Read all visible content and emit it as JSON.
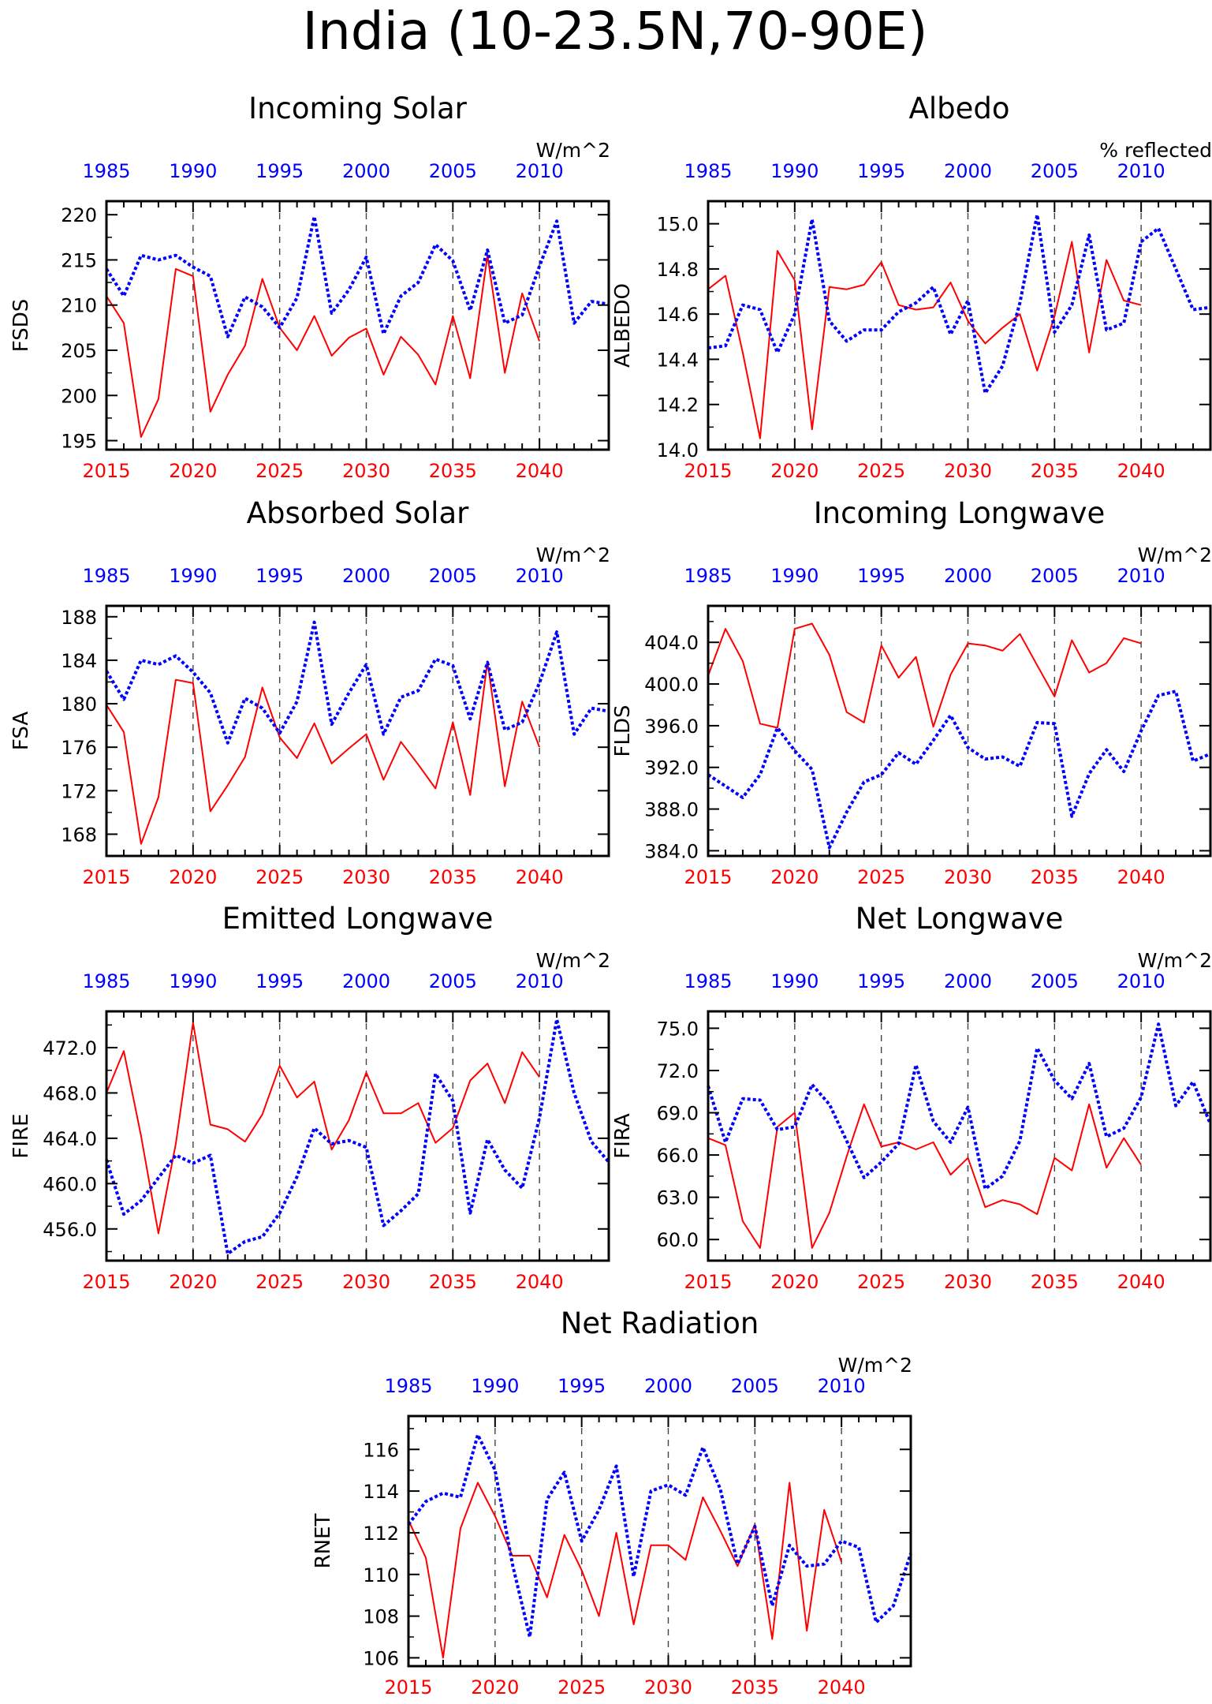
{
  "figure_title": "India (10-23.5N,70-90E)",
  "colors": {
    "future": "#ff0000",
    "historical": "#0000ff",
    "axis": "#000000",
    "grid": "#444444"
  },
  "chart_data": [
    {
      "type": "line",
      "title": "Incoming Solar",
      "ylabel": "FSDS",
      "units": "W/m^2",
      "x_bottom": [
        2015,
        2016,
        2017,
        2018,
        2019,
        2020,
        2021,
        2022,
        2023,
        2024,
        2025,
        2026,
        2027,
        2028,
        2029,
        2030,
        2031,
        2032,
        2033,
        2034,
        2035,
        2036,
        2037,
        2038,
        2039,
        2040,
        2041,
        2042,
        2043,
        2044
      ],
      "bottom_ticks": [
        "2015",
        "2020",
        "2025",
        "2030",
        "2035",
        "2040"
      ],
      "top_ticks": [
        "1985",
        "1990",
        "1995",
        "2000",
        "2005",
        "2010"
      ],
      "grid_years": [
        2020,
        2025,
        2030,
        2035,
        2040
      ],
      "ylim": [
        194,
        221.5
      ],
      "yticks": [
        195,
        200,
        205,
        210,
        215,
        220
      ],
      "ytick_labels": [
        "195",
        "200",
        "205",
        "210",
        "215",
        "220"
      ],
      "series": [
        {
          "values": [
            211.0,
            208.0,
            195.4,
            199.6,
            214.0,
            213.2,
            198.2,
            202.3,
            205.5,
            212.9,
            207.5,
            205.0,
            208.8,
            204.4,
            206.4,
            207.4,
            202.3,
            206.5,
            204.5,
            201.2,
            208.8,
            201.9,
            215.5,
            202.5,
            211.3,
            206.0
          ]
        },
        {
          "values": [
            214.0,
            211.0,
            215.5,
            215.0,
            215.5,
            214.2,
            213.2,
            206.5,
            210.9,
            209.8,
            207.5,
            210.8,
            219.8,
            209.1,
            211.7,
            215.3,
            206.8,
            211.0,
            212.5,
            216.7,
            214.9,
            209.4,
            216.1,
            208.0,
            208.9,
            214.3,
            219.3,
            208.0,
            210.4,
            210.1
          ]
        }
      ]
    },
    {
      "type": "line",
      "title": "Albedo",
      "ylabel": "ALBEDO",
      "units": "% reflected",
      "x_bottom": [
        2015,
        2016,
        2017,
        2018,
        2019,
        2020,
        2021,
        2022,
        2023,
        2024,
        2025,
        2026,
        2027,
        2028,
        2029,
        2030,
        2031,
        2032,
        2033,
        2034,
        2035,
        2036,
        2037,
        2038,
        2039,
        2040,
        2041,
        2042,
        2043,
        2044
      ],
      "bottom_ticks": [
        "2015",
        "2020",
        "2025",
        "2030",
        "2035",
        "2040"
      ],
      "top_ticks": [
        "1985",
        "1990",
        "1995",
        "2000",
        "2005",
        "2010"
      ],
      "grid_years": [
        2020,
        2025,
        2030,
        2035,
        2040
      ],
      "ylim": [
        14.0,
        15.1
      ],
      "yticks": [
        14.0,
        14.2,
        14.4,
        14.6,
        14.8,
        15.0
      ],
      "ytick_labels": [
        "14.0",
        "14.2",
        "14.4",
        "14.6",
        "14.8",
        "15.0"
      ],
      "series": [
        {
          "values": [
            14.71,
            14.77,
            14.43,
            14.05,
            14.88,
            14.75,
            14.09,
            14.72,
            14.71,
            14.73,
            14.83,
            14.64,
            14.62,
            14.63,
            14.74,
            14.57,
            14.47,
            14.54,
            14.6,
            14.35,
            14.59,
            14.92,
            14.43,
            14.84,
            14.66,
            14.64
          ]
        },
        {
          "values": [
            14.45,
            14.46,
            14.64,
            14.62,
            14.43,
            14.6,
            15.02,
            14.57,
            14.48,
            14.53,
            14.53,
            14.61,
            14.65,
            14.72,
            14.51,
            14.66,
            14.25,
            14.37,
            14.65,
            15.04,
            14.52,
            14.64,
            14.95,
            14.53,
            14.56,
            14.92,
            14.98,
            14.8,
            14.62,
            14.63
          ]
        }
      ]
    },
    {
      "type": "line",
      "title": "Absorbed Solar",
      "ylabel": "FSA",
      "units": "W/m^2",
      "x_bottom": [
        2015,
        2016,
        2017,
        2018,
        2019,
        2020,
        2021,
        2022,
        2023,
        2024,
        2025,
        2026,
        2027,
        2028,
        2029,
        2030,
        2031,
        2032,
        2033,
        2034,
        2035,
        2036,
        2037,
        2038,
        2039,
        2040,
        2041,
        2042,
        2043,
        2044
      ],
      "bottom_ticks": [
        "2015",
        "2020",
        "2025",
        "2030",
        "2035",
        "2040"
      ],
      "top_ticks": [
        "1985",
        "1990",
        "1995",
        "2000",
        "2005",
        "2010"
      ],
      "grid_years": [
        2020,
        2025,
        2030,
        2035,
        2040
      ],
      "ylim": [
        166,
        189
      ],
      "yticks": [
        168,
        172,
        176,
        180,
        184,
        188
      ],
      "ytick_labels": [
        "168",
        "172",
        "176",
        "180",
        "184",
        "188"
      ],
      "series": [
        {
          "values": [
            179.9,
            177.4,
            167.1,
            171.4,
            182.2,
            181.9,
            170.1,
            172.5,
            175.1,
            181.5,
            176.9,
            175.0,
            178.2,
            174.5,
            175.9,
            177.2,
            173.0,
            176.5,
            174.4,
            172.2,
            178.3,
            171.6,
            183.9,
            172.4,
            180.2,
            176.0
          ]
        },
        {
          "values": [
            183.0,
            180.4,
            184.0,
            183.6,
            184.4,
            182.9,
            181.0,
            176.4,
            180.5,
            179.6,
            177.3,
            180.2,
            187.5,
            178.1,
            181.0,
            183.6,
            177.2,
            180.6,
            181.2,
            184.1,
            183.5,
            178.6,
            183.8,
            177.6,
            178.3,
            181.9,
            186.6,
            177.2,
            179.6,
            179.3
          ]
        }
      ]
    },
    {
      "type": "line",
      "title": "Incoming Longwave",
      "ylabel": "FLDS",
      "units": "W/m^2",
      "x_bottom": [
        2015,
        2016,
        2017,
        2018,
        2019,
        2020,
        2021,
        2022,
        2023,
        2024,
        2025,
        2026,
        2027,
        2028,
        2029,
        2030,
        2031,
        2032,
        2033,
        2034,
        2035,
        2036,
        2037,
        2038,
        2039,
        2040,
        2041,
        2042,
        2043,
        2044
      ],
      "bottom_ticks": [
        "2015",
        "2020",
        "2025",
        "2030",
        "2035",
        "2040"
      ],
      "top_ticks": [
        "1985",
        "1990",
        "1995",
        "2000",
        "2005",
        "2010"
      ],
      "grid_years": [
        2020,
        2025,
        2030,
        2035,
        2040
      ],
      "ylim": [
        383.5,
        407.5
      ],
      "yticks": [
        384,
        388,
        392,
        396,
        400,
        404
      ],
      "ytick_labels": [
        "384.0",
        "388.0",
        "392.0",
        "396.0",
        "400.0",
        "404.0"
      ],
      "series": [
        {
          "values": [
            400.8,
            405.3,
            402.2,
            396.2,
            395.8,
            405.3,
            405.8,
            402.8,
            397.3,
            396.3,
            403.7,
            400.6,
            402.6,
            395.9,
            400.9,
            403.9,
            403.7,
            403.2,
            404.8,
            401.8,
            398.8,
            404.2,
            401.1,
            402.0,
            404.4,
            403.9
          ]
        },
        {
          "values": [
            391.3,
            390.2,
            389.1,
            391.3,
            395.8,
            393.6,
            391.8,
            384.3,
            387.7,
            390.6,
            391.3,
            393.4,
            392.3,
            394.6,
            397.0,
            393.9,
            392.8,
            393.0,
            392.1,
            396.3,
            396.2,
            387.3,
            391.4,
            393.7,
            391.6,
            395.5,
            398.9,
            399.3,
            392.6,
            393.3
          ]
        }
      ]
    },
    {
      "type": "line",
      "title": "Emitted Longwave",
      "ylabel": "FIRE",
      "units": "W/m^2",
      "x_bottom": [
        2015,
        2016,
        2017,
        2018,
        2019,
        2020,
        2021,
        2022,
        2023,
        2024,
        2025,
        2026,
        2027,
        2028,
        2029,
        2030,
        2031,
        2032,
        2033,
        2034,
        2035,
        2036,
        2037,
        2038,
        2039,
        2040,
        2041,
        2042,
        2043,
        2044
      ],
      "bottom_ticks": [
        "2015",
        "2020",
        "2025",
        "2030",
        "2035",
        "2040"
      ],
      "top_ticks": [
        "1985",
        "1990",
        "1995",
        "2000",
        "2005",
        "2010"
      ],
      "grid_years": [
        2020,
        2025,
        2030,
        2035,
        2040
      ],
      "ylim": [
        453.2,
        475.2
      ],
      "yticks": [
        456,
        460,
        464,
        468,
        472
      ],
      "ytick_labels": [
        "456.0",
        "460.0",
        "464.0",
        "468.0",
        "472.0"
      ],
      "series": [
        {
          "values": [
            468.0,
            471.7,
            464.2,
            455.6,
            463.5,
            474.2,
            465.2,
            464.8,
            463.7,
            466.1,
            470.4,
            467.6,
            469.0,
            463.0,
            465.6,
            469.8,
            466.2,
            466.2,
            467.1,
            463.6,
            464.9,
            469.1,
            470.6,
            467.1,
            471.6,
            469.4
          ]
        },
        {
          "values": [
            462.1,
            457.3,
            458.5,
            460.5,
            462.5,
            461.8,
            462.5,
            453.8,
            454.9,
            455.3,
            457.4,
            460.6,
            464.9,
            463.5,
            463.8,
            463.2,
            456.3,
            457.6,
            459.1,
            469.7,
            467.3,
            457.4,
            463.9,
            461.2,
            459.6,
            465.8,
            474.5,
            468.0,
            463.7,
            461.9
          ]
        }
      ]
    },
    {
      "type": "line",
      "title": "Net Longwave",
      "ylabel": "FIRA",
      "units": "W/m^2",
      "x_bottom": [
        2015,
        2016,
        2017,
        2018,
        2019,
        2020,
        2021,
        2022,
        2023,
        2024,
        2025,
        2026,
        2027,
        2028,
        2029,
        2030,
        2031,
        2032,
        2033,
        2034,
        2035,
        2036,
        2037,
        2038,
        2039,
        2040,
        2041,
        2042,
        2043,
        2044
      ],
      "bottom_ticks": [
        "2015",
        "2020",
        "2025",
        "2030",
        "2035",
        "2040"
      ],
      "top_ticks": [
        "1985",
        "1990",
        "1995",
        "2000",
        "2005",
        "2010"
      ],
      "grid_years": [
        2020,
        2025,
        2030,
        2035,
        2040
      ],
      "ylim": [
        58.5,
        76.2
      ],
      "yticks": [
        60,
        63,
        66,
        69,
        72,
        75
      ],
      "ytick_labels": [
        "60.0",
        "63.0",
        "66.0",
        "69.0",
        "72.0",
        "75.0"
      ],
      "series": [
        {
          "values": [
            67.2,
            66.7,
            61.3,
            59.4,
            68.0,
            69.0,
            59.4,
            61.9,
            65.9,
            69.6,
            66.6,
            66.9,
            66.4,
            66.9,
            64.6,
            65.8,
            62.3,
            62.8,
            62.5,
            61.8,
            65.8,
            64.9,
            69.6,
            65.1,
            67.2,
            65.3
          ]
        },
        {
          "values": [
            70.9,
            66.9,
            70.0,
            69.9,
            67.8,
            68.0,
            71.0,
            69.6,
            67.0,
            64.4,
            65.5,
            66.8,
            72.4,
            68.4,
            66.9,
            69.4,
            63.6,
            64.5,
            67.0,
            73.6,
            71.3,
            70.0,
            72.5,
            67.3,
            67.9,
            70.1,
            75.3,
            69.5,
            71.2,
            68.2
          ]
        }
      ]
    },
    {
      "type": "line",
      "title": "Net Radiation",
      "ylabel": "RNET",
      "units": "W/m^2",
      "x_bottom": [
        2015,
        2016,
        2017,
        2018,
        2019,
        2020,
        2021,
        2022,
        2023,
        2024,
        2025,
        2026,
        2027,
        2028,
        2029,
        2030,
        2031,
        2032,
        2033,
        2034,
        2035,
        2036,
        2037,
        2038,
        2039,
        2040,
        2041,
        2042,
        2043,
        2044
      ],
      "bottom_ticks": [
        "2015",
        "2020",
        "2025",
        "2030",
        "2035",
        "2040"
      ],
      "top_ticks": [
        "1985",
        "1990",
        "1995",
        "2000",
        "2005",
        "2010"
      ],
      "grid_years": [
        2020,
        2025,
        2030,
        2035,
        2040
      ],
      "ylim": [
        105.6,
        117.6
      ],
      "yticks": [
        106,
        108,
        110,
        112,
        114,
        116
      ],
      "ytick_labels": [
        "106",
        "108",
        "110",
        "112",
        "114",
        "116"
      ],
      "series": [
        {
          "values": [
            112.6,
            110.8,
            106.0,
            112.2,
            114.4,
            112.8,
            110.9,
            110.9,
            108.9,
            111.9,
            110.2,
            108.0,
            112.0,
            107.6,
            111.4,
            111.4,
            110.7,
            113.7,
            112.1,
            110.4,
            112.4,
            106.9,
            114.4,
            107.3,
            113.1,
            110.6
          ]
        },
        {
          "values": [
            112.4,
            113.5,
            113.9,
            113.7,
            116.7,
            115.0,
            110.5,
            107.0,
            113.6,
            114.9,
            111.6,
            113.1,
            115.2,
            109.9,
            114.0,
            114.3,
            113.8,
            116.1,
            114.1,
            110.5,
            112.3,
            108.5,
            111.4,
            110.4,
            110.5,
            111.6,
            111.3,
            107.7,
            108.5,
            111.0
          ]
        }
      ]
    }
  ]
}
